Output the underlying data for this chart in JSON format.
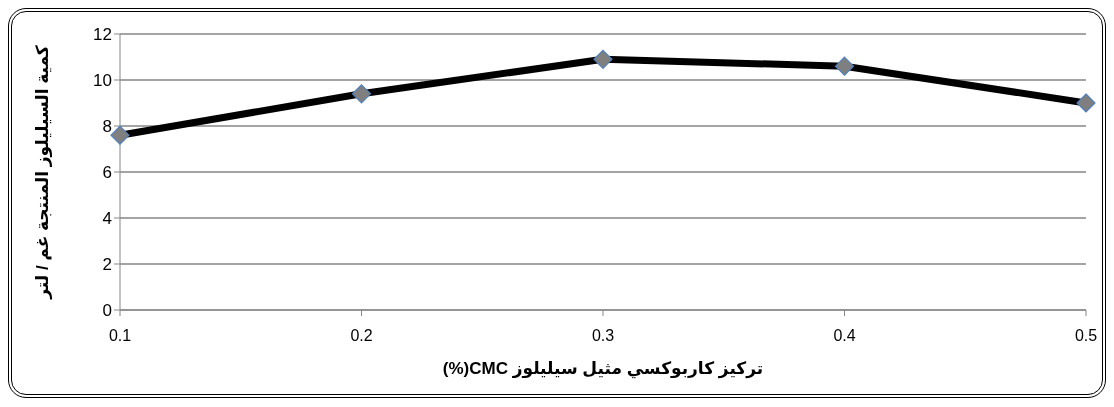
{
  "chart_data": {
    "type": "line",
    "categories": [
      "0.1",
      "0.2",
      "0.3",
      "0.4",
      "0.5"
    ],
    "series": [
      {
        "color": "#000000",
        "values": [
          7.6,
          9.4,
          10.9,
          10.6,
          9.0
        ]
      }
    ],
    "xlabel": "تركيز كاربوكسي مثيل سيليلوز CMC(%)",
    "ylabel": "كمية السيليلوز المنتجة غم / لتر",
    "ylim": [
      0,
      12
    ],
    "yticks": [
      0,
      2,
      4,
      6,
      8,
      10,
      12
    ],
    "grid": "y",
    "marker": "diamond",
    "line_style": "solid"
  }
}
